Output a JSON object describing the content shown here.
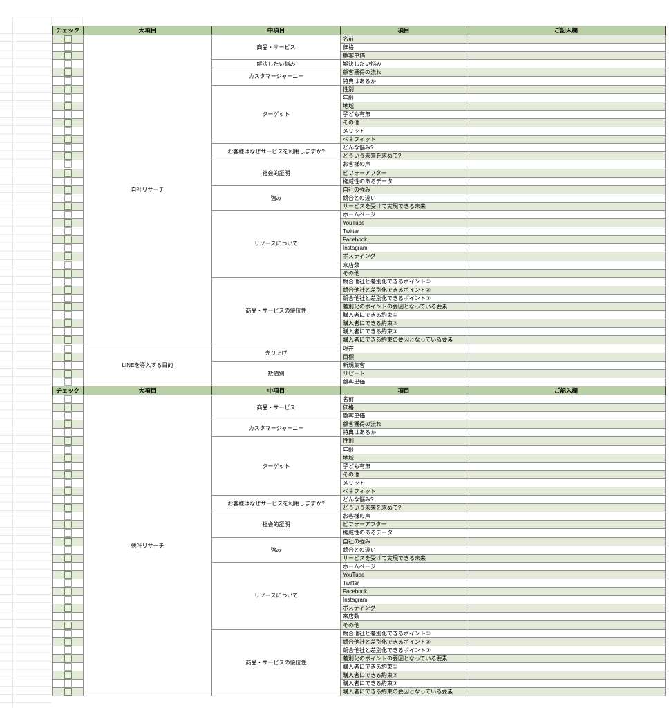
{
  "columns": [
    "チェック",
    "大項目",
    "中項目",
    "項目",
    "ご記入欄"
  ],
  "colors": {
    "header_bg": "#b9cfa5",
    "row_tint": "#e4ebda",
    "checkbox_border_tinted": "#6f9150",
    "checkbox_border_plain": "#a3a3a3"
  },
  "sections": [
    {
      "first_row_tinted": true,
      "groups": [
        {
          "major": "自社リサーチ",
          "subgroups": [
            {
              "label": "商品・サービス",
              "items": [
                "名前",
                "価格",
                "顧客単価"
              ]
            },
            {
              "label": "解決したい悩み",
              "items": [
                "解決したい悩み"
              ]
            },
            {
              "label": "カスタマージャーニー",
              "items": [
                "顧客獲得の流れ",
                "特典はあるか"
              ]
            },
            {
              "label": "ターゲット",
              "items": [
                "性別",
                "年齢",
                "地域",
                "子ども有無",
                "その他",
                "メリット",
                "ベネフィット"
              ]
            },
            {
              "label": "お客様はなぜサービスを利用しますか?",
              "items": [
                "どんな悩み?",
                "どういう未来を求めて?"
              ]
            },
            {
              "label": "社会的証明",
              "items": [
                "お客様の声",
                "ビフォーアフター",
                "権威性のあるデータ"
              ]
            },
            {
              "label": "強み",
              "items": [
                "自社の強み",
                "競合との違い",
                "サービスを受けて実現できる未来"
              ]
            },
            {
              "label": "リソースについて",
              "items": [
                "ホームページ",
                "YouTube",
                "Twitter",
                "Facebook",
                "Instagram",
                "ポスティング",
                "来店数",
                "その他"
              ]
            },
            {
              "label": "商品・サービスの優位性",
              "items": [
                "競合他社と差別化できるポイント①",
                "競合他社と差別化できるポイント②",
                "競合他社と差別化できるポイント③",
                "差別化のポイントの要因となっている要素",
                "購入者にできる約束①",
                "購入者にできる約束②",
                "購入者にできる約束③",
                "購入者にできる約束の要因となっている要素"
              ]
            }
          ]
        },
        {
          "major": "LINEを導入する目的",
          "subgroups": [
            {
              "label": "売り上げ",
              "items": [
                "現在",
                "目標"
              ]
            },
            {
              "label": "数値別",
              "items": [
                "新規集客",
                "リピート",
                "顧客単価"
              ]
            }
          ]
        }
      ]
    },
    {
      "first_row_tinted": false,
      "groups": [
        {
          "major": "他社リサーチ",
          "subgroups": [
            {
              "label": "商品・サービス",
              "items": [
                "名前",
                "価格",
                "顧客単価"
              ]
            },
            {
              "label": "カスタマージャーニー",
              "items": [
                "顧客獲得の流れ",
                "特典はあるか"
              ]
            },
            {
              "label": "ターゲット",
              "items": [
                "性別",
                "年齢",
                "地域",
                "子ども有無",
                "その他",
                "メリット",
                "ベネフィット"
              ]
            },
            {
              "label": "お客様はなぜサービスを利用しますか?",
              "items": [
                "どんな悩み?",
                "どういう未来を求めて?"
              ]
            },
            {
              "label": "社会的証明",
              "items": [
                "お客様の声",
                "ビフォーアフター",
                "権威性のあるデータ"
              ]
            },
            {
              "label": "強み",
              "items": [
                "自社の強み",
                "競合との違い",
                "サービスを受けて実現できる未来"
              ]
            },
            {
              "label": "リソースについて",
              "items": [
                "ホームページ",
                "YouTube",
                "Twitter",
                "Facebook",
                "Instagram",
                "ポスティング",
                "来店数",
                "その他"
              ]
            },
            {
              "label": "商品・サービスの優位性",
              "items": [
                "競合他社と差別化できるポイント①",
                "競合他社と差別化できるポイント②",
                "競合他社と差別化できるポイント③",
                "差別化のポイントの要因となっている要素",
                "購入者にできる約束①",
                "購入者にできる約束②",
                "購入者にできる約束③",
                "購入者にできる約束の要因となっている要素"
              ]
            }
          ]
        }
      ]
    }
  ]
}
